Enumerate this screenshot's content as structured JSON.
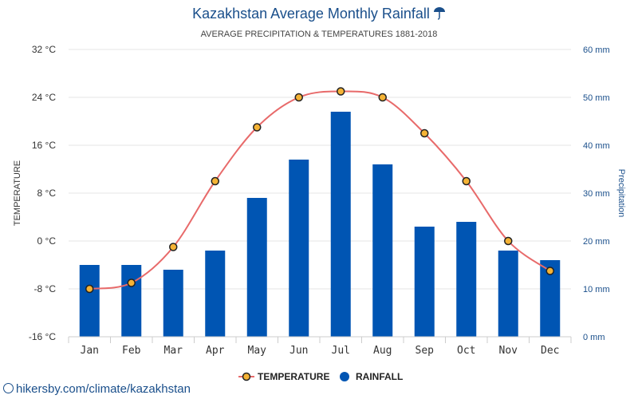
{
  "colors": {
    "bar": "#0055b3",
    "line": "#e86a6a",
    "marker_fill": "#f5b335",
    "marker_stroke": "#222222",
    "title": "#1a4f8b",
    "grid": "#e6e6e6"
  },
  "source": {
    "url_text": "hikersby.com/climate/kazakhstan"
  },
  "chart_data": {
    "type": "bar",
    "title": "Kazakhstan Average Monthly Rainfall",
    "title_icon": "umbrella-icon",
    "subtitle": "AVERAGE PRECIPITATION & TEMPERATURES 1881-2018",
    "categories": [
      "Jan",
      "Feb",
      "Mar",
      "Apr",
      "May",
      "Jun",
      "Jul",
      "Aug",
      "Sep",
      "Oct",
      "Nov",
      "Dec"
    ],
    "series": [
      {
        "name": "TEMPERATURE",
        "type": "line",
        "axis": "left",
        "unit": "°C",
        "values": [
          -8,
          -7,
          -1,
          10,
          19,
          24,
          25,
          24,
          18,
          10,
          0,
          -5
        ]
      },
      {
        "name": "RAINFALL",
        "type": "bar",
        "axis": "right",
        "unit": "mm",
        "values": [
          15,
          15,
          14,
          18,
          29,
          37,
          47,
          36,
          23,
          24,
          18,
          16
        ]
      }
    ],
    "left_axis": {
      "label": "TEMPERATURE",
      "ylim": [
        -16,
        32
      ],
      "ticks": [
        -16,
        -8,
        0,
        8,
        16,
        24,
        32
      ],
      "tick_labels": [
        "-16 °C",
        "-8 °C",
        "0 °C",
        "8 °C",
        "16 °C",
        "24 °C",
        "32 °C"
      ]
    },
    "right_axis": {
      "label": "Precipitation",
      "ylim": [
        0,
        60
      ],
      "ticks": [
        0,
        10,
        20,
        30,
        40,
        50,
        60
      ],
      "tick_labels": [
        "0 mm",
        "10 mm",
        "20 mm",
        "30 mm",
        "40 mm",
        "50 mm",
        "60 mm"
      ]
    },
    "grid": true,
    "legend": [
      "TEMPERATURE",
      "RAINFALL"
    ],
    "legend_position": "bottom-center"
  }
}
